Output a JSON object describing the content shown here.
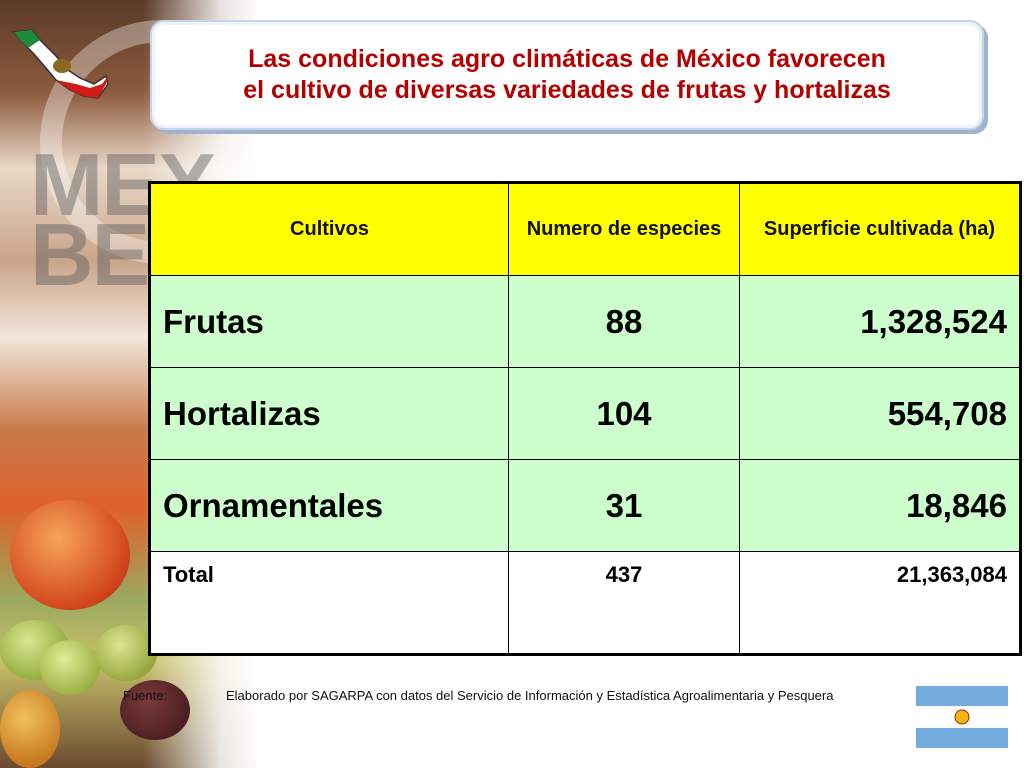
{
  "title": {
    "line1": "Las condiciones agro climáticas de México favorecen",
    "line2": "el cultivo de diversas variedades de frutas y hortalizas"
  },
  "background": {
    "watermark_text": "MEX BES"
  },
  "table": {
    "headers": [
      "Cultivos",
      "Numero de especies",
      "Superficie cultivada (ha)"
    ],
    "rows": [
      {
        "crop": "Frutas",
        "species": "88",
        "area": "1,328,524"
      },
      {
        "crop": "Hortalizas",
        "species": "104",
        "area": "554,708"
      },
      {
        "crop": "Ornamentales",
        "species": "31",
        "area": "18,846"
      }
    ],
    "total": {
      "label": "Total",
      "species": "437",
      "area": "21,363,084"
    }
  },
  "source": {
    "label": "Fuente:",
    "text": "Elaborado por SAGARPA con datos del Servicio de Información y Estadística Agroalimentaria y Pesquera"
  },
  "icons": {
    "map": "mexico-map-icon",
    "flag": "argentina-flag-icon"
  },
  "colors": {
    "title_text": "#b30000",
    "header_bg": "#ffff00",
    "row_bg": "#ccffcc",
    "total_bg": "#ffffff"
  }
}
